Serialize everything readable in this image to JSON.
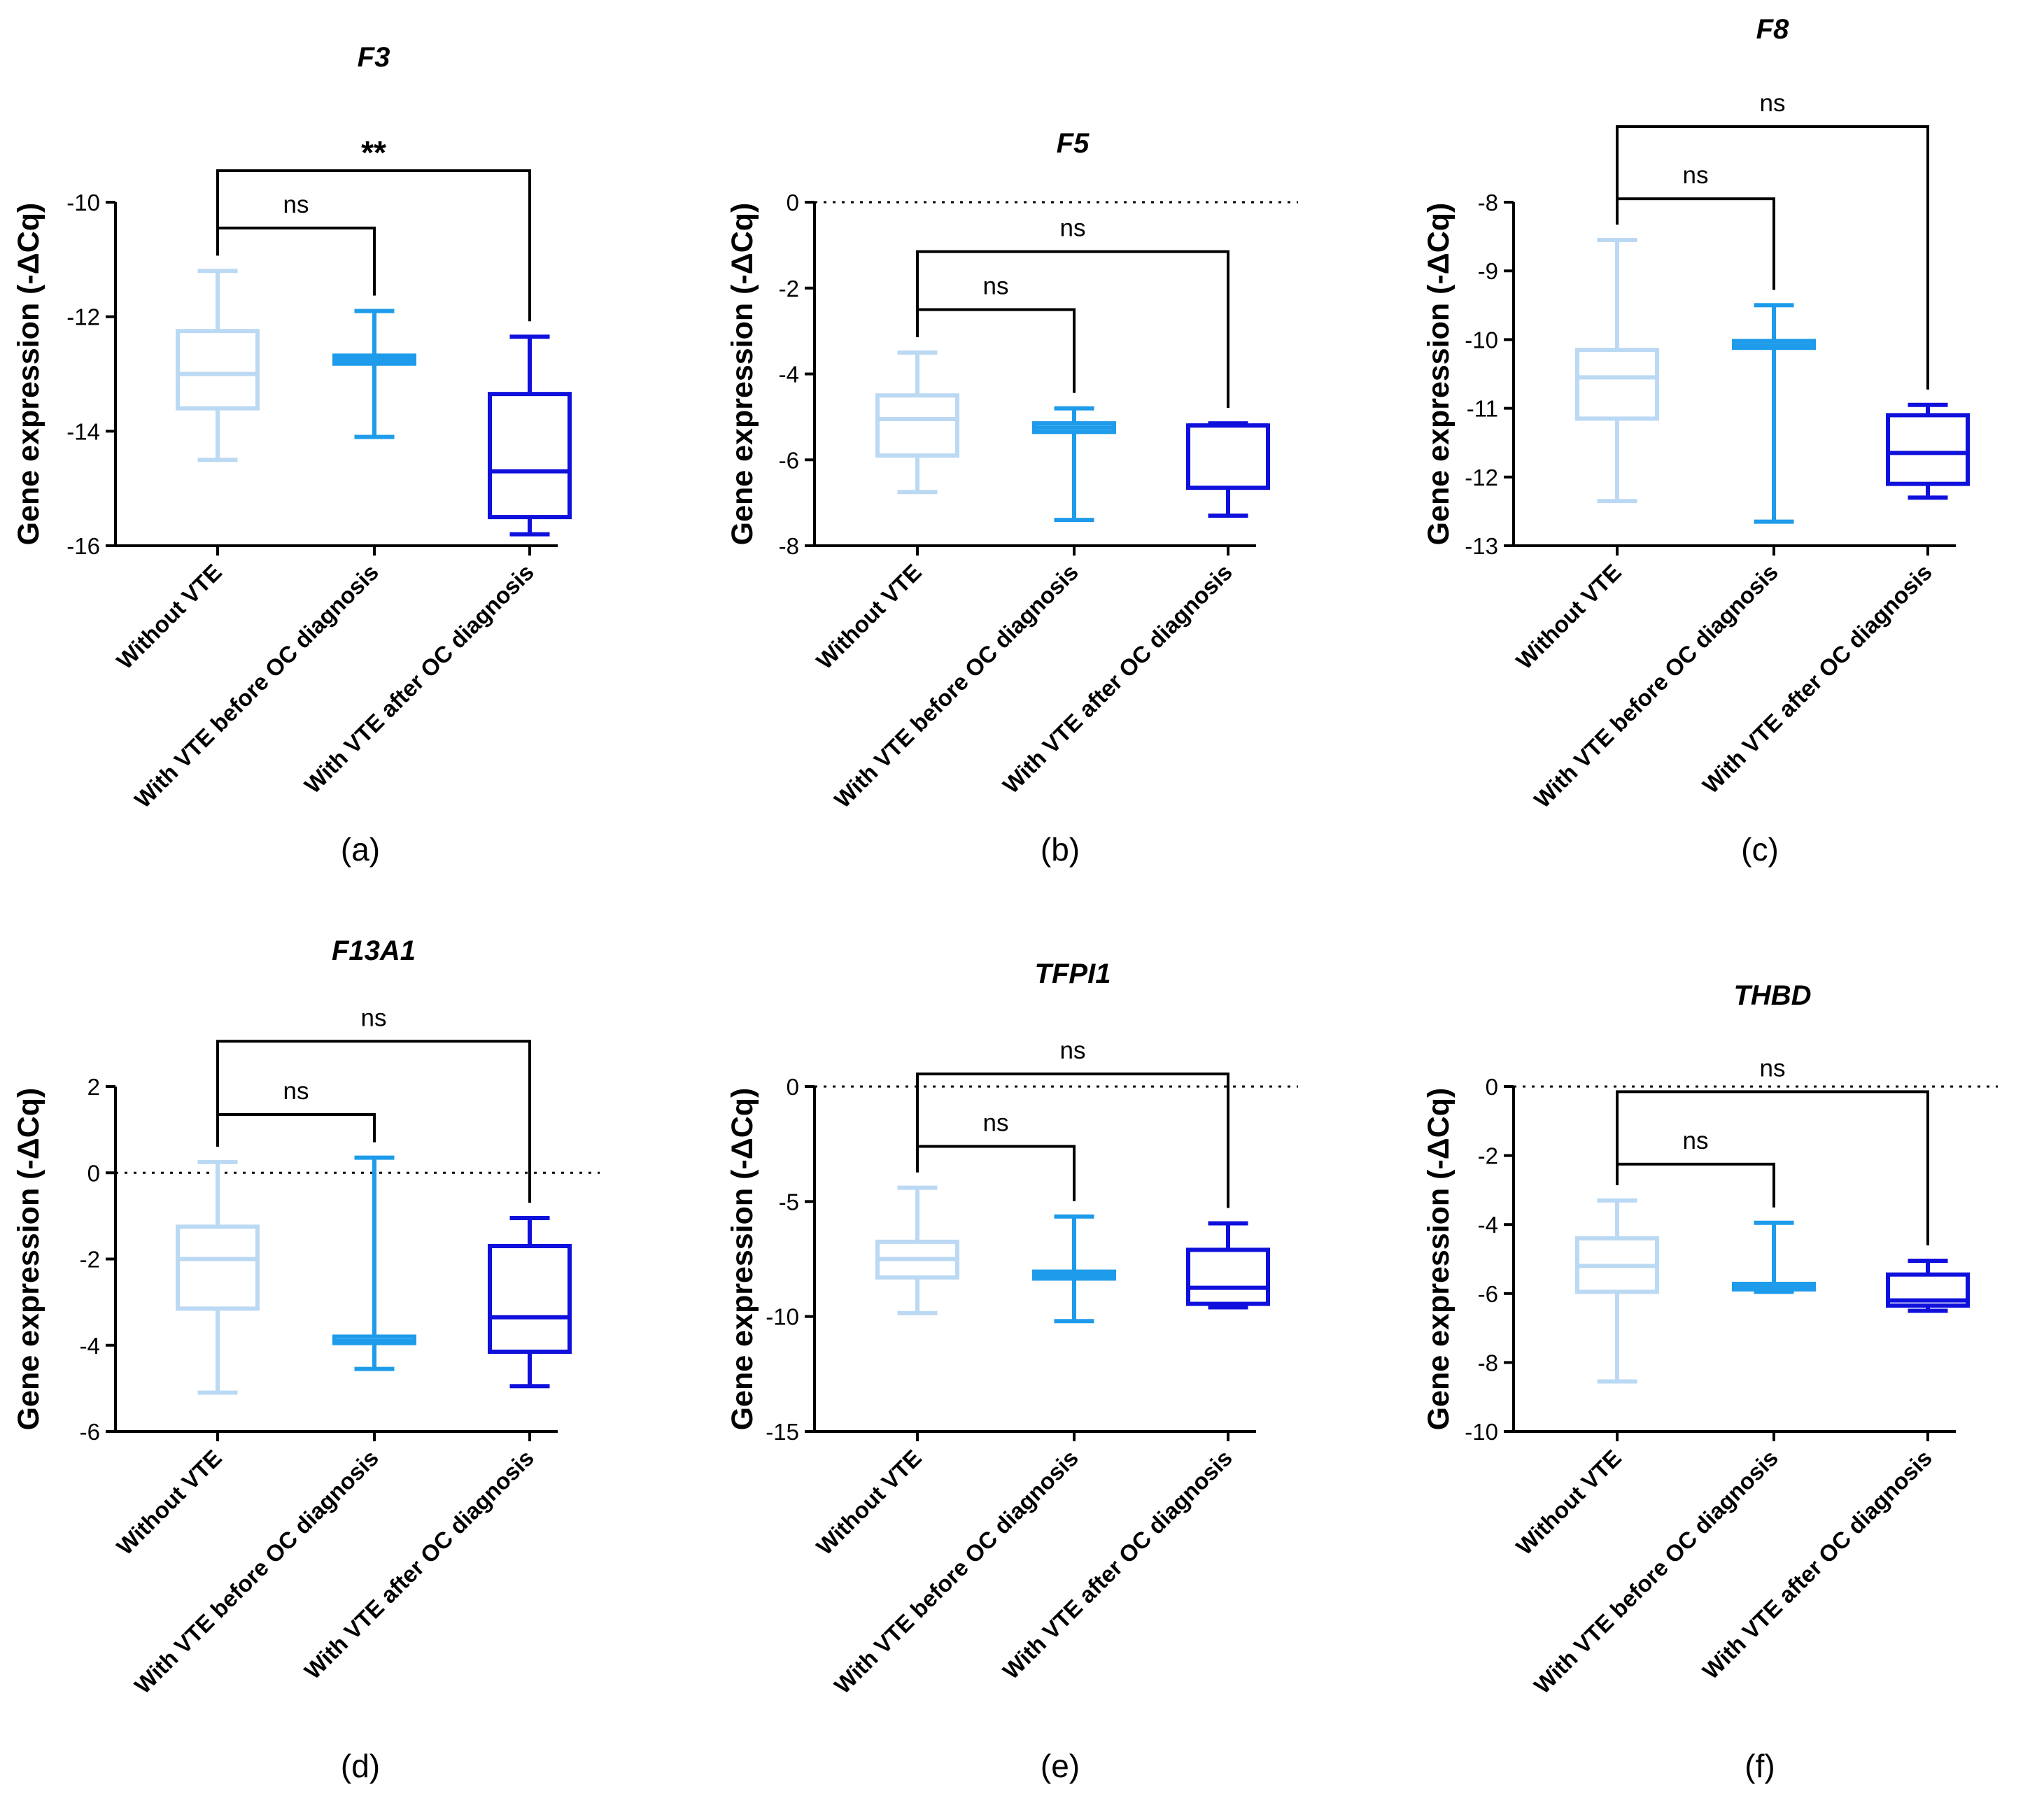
{
  "figure": {
    "panel_labels": [
      "(a)",
      "(b)",
      "(c)",
      "(d)",
      "(e)",
      "(f)"
    ]
  },
  "colors": {
    "without_vte": "#BBD9F3",
    "vte_before": "#1E9BEA",
    "vte_after": "#1010DC",
    "axis": "#000000"
  },
  "chart_data": [
    {
      "type": "boxplot",
      "panel": "(a)",
      "title": "F3",
      "ylabel": "Gene expression (-ΔCq)",
      "ylim": [
        -16,
        -10
      ],
      "yticks": [
        -10,
        -12,
        -14,
        -16
      ],
      "ytick_labels": [
        "-10",
        "-12",
        "-14",
        "-16"
      ],
      "zero_line": false,
      "categories": [
        "Without VTE",
        "With VTE before OC diagnosis",
        "With VTE after OC diagnosis"
      ],
      "boxes": [
        {
          "min": -14.5,
          "q1": -13.6,
          "median": -13.0,
          "q3": -12.25,
          "max": -11.2
        },
        {
          "min": -14.1,
          "q1": -12.82,
          "median": -12.75,
          "q3": -12.68,
          "max": -11.9
        },
        {
          "min": -15.8,
          "q1": -15.5,
          "median": -14.7,
          "q3": -13.35,
          "max": -12.35
        }
      ],
      "comparisons": [
        {
          "from": 0,
          "to": 1,
          "label": "ns",
          "y": -10.45
        },
        {
          "from": 0,
          "to": 2,
          "label": "**",
          "y": -9.45
        }
      ]
    },
    {
      "type": "boxplot",
      "panel": "(b)",
      "title": "F5",
      "ylabel": "Gene expression (-ΔCq)",
      "ylim": [
        -8,
        0
      ],
      "yticks": [
        0,
        -2,
        -4,
        -6,
        -8
      ],
      "ytick_labels": [
        "0",
        "-2",
        "-4",
        "-6",
        "-8"
      ],
      "zero_line": true,
      "categories": [
        "Without VTE",
        "With VTE before OC diagnosis",
        "With VTE after OC diagnosis"
      ],
      "boxes": [
        {
          "min": -6.75,
          "q1": -5.9,
          "median": -5.05,
          "q3": -4.5,
          "max": -3.5
        },
        {
          "min": -7.4,
          "q1": -5.35,
          "median": -5.25,
          "q3": -5.15,
          "max": -4.8
        },
        {
          "min": -7.3,
          "q1": -6.65,
          "median": -5.2,
          "q3": -5.2,
          "max": -5.15
        }
      ],
      "comparisons": [
        {
          "from": 0,
          "to": 1,
          "label": "ns",
          "y": -2.5
        },
        {
          "from": 0,
          "to": 2,
          "label": "ns",
          "y": -1.15
        }
      ]
    },
    {
      "type": "boxplot",
      "panel": "(c)",
      "title": "F8",
      "ylabel": "Gene expression (-ΔCq)",
      "ylim": [
        -13,
        -8
      ],
      "yticks": [
        -8,
        -9,
        -10,
        -11,
        -12,
        -13
      ],
      "ytick_labels": [
        "-8",
        "-9",
        "-10",
        "-11",
        "-12",
        "-13"
      ],
      "zero_line": false,
      "categories": [
        "Without VTE",
        "With VTE before OC diagnosis",
        "With VTE after OC diagnosis"
      ],
      "boxes": [
        {
          "min": -12.35,
          "q1": -11.15,
          "median": -10.55,
          "q3": -10.15,
          "max": -8.55
        },
        {
          "min": -12.65,
          "q1": -10.12,
          "median": -10.08,
          "q3": -10.02,
          "max": -9.5
        },
        {
          "min": -12.3,
          "q1": -12.1,
          "median": -11.65,
          "q3": -11.1,
          "max": -10.95
        }
      ],
      "comparisons": [
        {
          "from": 0,
          "to": 1,
          "label": "ns",
          "y": -7.95
        },
        {
          "from": 0,
          "to": 2,
          "label": "ns",
          "y": -6.9
        }
      ]
    },
    {
      "type": "boxplot",
      "panel": "(d)",
      "title": "F13A1",
      "ylabel": "Gene expression (-ΔCq)",
      "ylim": [
        -6,
        2
      ],
      "yticks": [
        2,
        0,
        -2,
        -4,
        -6
      ],
      "ytick_labels": [
        "2",
        "0",
        "-2",
        "-4",
        "-6"
      ],
      "zero_line": true,
      "categories": [
        "Without VTE",
        "With VTE before OC diagnosis",
        "With VTE after OC diagnosis"
      ],
      "boxes": [
        {
          "min": -5.1,
          "q1": -3.15,
          "median": -2.0,
          "q3": -1.25,
          "max": 0.25
        },
        {
          "min": -4.55,
          "q1": -3.95,
          "median": -3.9,
          "q3": -3.8,
          "max": 0.35
        },
        {
          "min": -4.95,
          "q1": -4.15,
          "median": -3.35,
          "q3": -1.7,
          "max": -1.05
        }
      ],
      "comparisons": [
        {
          "from": 0,
          "to": 1,
          "label": "ns",
          "y": 1.35
        },
        {
          "from": 0,
          "to": 2,
          "label": "ns",
          "y": 3.05
        }
      ]
    },
    {
      "type": "boxplot",
      "panel": "(e)",
      "title": "TFPI1",
      "ylabel": "Gene expression (-ΔCq)",
      "ylim": [
        -15,
        0
      ],
      "yticks": [
        0,
        -5,
        -10,
        -15
      ],
      "ytick_labels": [
        "0",
        "-5",
        "-10",
        "-15"
      ],
      "zero_line": true,
      "categories": [
        "Without VTE",
        "With VTE before OC diagnosis",
        "With VTE after OC diagnosis"
      ],
      "boxes": [
        {
          "min": -9.85,
          "q1": -8.3,
          "median": -7.5,
          "q3": -6.75,
          "max": -4.4
        },
        {
          "min": -10.2,
          "q1": -8.35,
          "median": -8.2,
          "q3": -8.05,
          "max": -5.65
        },
        {
          "min": -9.6,
          "q1": -9.45,
          "median": -8.75,
          "q3": -7.1,
          "max": -5.95
        }
      ],
      "comparisons": [
        {
          "from": 0,
          "to": 1,
          "label": "ns",
          "y": -2.6
        },
        {
          "from": 0,
          "to": 2,
          "label": "ns",
          "y": 0.55
        }
      ]
    },
    {
      "type": "boxplot",
      "panel": "(f)",
      "title": "THBD",
      "ylabel": "Gene expression (-ΔCq)",
      "ylim": [
        -10,
        0
      ],
      "yticks": [
        0,
        -2,
        -4,
        -6,
        -8,
        -10
      ],
      "ytick_labels": [
        "0",
        "-2",
        "-4",
        "-6",
        "-8",
        "-10"
      ],
      "zero_line": true,
      "categories": [
        "Without VTE",
        "With VTE before OC diagnosis",
        "With VTE after OC diagnosis"
      ],
      "boxes": [
        {
          "min": -8.55,
          "q1": -5.95,
          "median": -5.2,
          "q3": -4.4,
          "max": -3.3
        },
        {
          "min": -5.95,
          "q1": -5.88,
          "median": -5.8,
          "q3": -5.72,
          "max": -3.95
        },
        {
          "min": -6.5,
          "q1": -6.35,
          "median": -6.2,
          "q3": -5.45,
          "max": -5.05
        }
      ],
      "comparisons": [
        {
          "from": 0,
          "to": 1,
          "label": "ns",
          "y": -2.25
        },
        {
          "from": 0,
          "to": 2,
          "label": "ns",
          "y": -0.15
        }
      ]
    }
  ]
}
